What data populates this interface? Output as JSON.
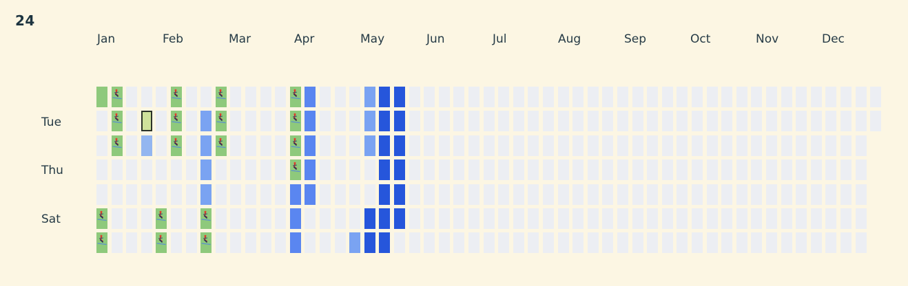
{
  "year_label": "24",
  "months": [
    "Jan",
    "Feb",
    "Mar",
    "Apr",
    "May",
    "Jun",
    "Jul",
    "Aug",
    "Sep",
    "Oct",
    "Nov",
    "Dec"
  ],
  "weekday_labels": [
    {
      "row": 1,
      "label": "Tue"
    },
    {
      "row": 3,
      "label": "Thu"
    },
    {
      "row": 5,
      "label": "Sat"
    }
  ],
  "icons": {
    "activity": "skier-icon"
  },
  "colors": {
    "background": "#fcf6e3",
    "empty": "#eceef3",
    "ski_activity": "#8ec97c",
    "selected_day": "#cfe29b",
    "level_1": "#93b6f0",
    "level_2": "#7aa3f2",
    "level_3": "#5a86f0",
    "level_4": "#2656db"
  },
  "grid": {
    "weeks": 53,
    "days_per_week": 7,
    "first_week_start_row": 0,
    "last_week_end_row": 1,
    "marked_days": [
      {
        "week": 0,
        "day": 0,
        "state": "green"
      },
      {
        "week": 0,
        "day": 5,
        "state": "green",
        "icon": true
      },
      {
        "week": 0,
        "day": 6,
        "state": "green",
        "icon": true
      },
      {
        "week": 1,
        "day": 0,
        "state": "green",
        "icon": true
      },
      {
        "week": 1,
        "day": 1,
        "state": "green",
        "icon": true
      },
      {
        "week": 1,
        "day": 2,
        "state": "green",
        "icon": true
      },
      {
        "week": 3,
        "day": 1,
        "state": "lightgreen",
        "selected": true
      },
      {
        "week": 3,
        "day": 2,
        "state": "blue1"
      },
      {
        "week": 4,
        "day": 5,
        "state": "green",
        "icon": true
      },
      {
        "week": 4,
        "day": 6,
        "state": "green",
        "icon": true
      },
      {
        "week": 5,
        "day": 0,
        "state": "green",
        "icon": true
      },
      {
        "week": 5,
        "day": 1,
        "state": "green",
        "icon": true
      },
      {
        "week": 5,
        "day": 2,
        "state": "green",
        "icon": true
      },
      {
        "week": 7,
        "day": 1,
        "state": "blue2"
      },
      {
        "week": 7,
        "day": 2,
        "state": "blue2"
      },
      {
        "week": 7,
        "day": 3,
        "state": "blue2"
      },
      {
        "week": 7,
        "day": 4,
        "state": "blue2"
      },
      {
        "week": 7,
        "day": 5,
        "state": "green",
        "icon": true
      },
      {
        "week": 7,
        "day": 6,
        "state": "green",
        "icon": true
      },
      {
        "week": 8,
        "day": 0,
        "state": "green",
        "icon": true
      },
      {
        "week": 8,
        "day": 1,
        "state": "green",
        "icon": true
      },
      {
        "week": 8,
        "day": 2,
        "state": "green",
        "icon": true
      },
      {
        "week": 13,
        "day": 0,
        "state": "green",
        "icon": true
      },
      {
        "week": 13,
        "day": 1,
        "state": "green",
        "icon": true
      },
      {
        "week": 13,
        "day": 2,
        "state": "green",
        "icon": true
      },
      {
        "week": 13,
        "day": 3,
        "state": "green",
        "icon": true
      },
      {
        "week": 13,
        "day": 4,
        "state": "blue3"
      },
      {
        "week": 13,
        "day": 5,
        "state": "blue3"
      },
      {
        "week": 13,
        "day": 6,
        "state": "blue3"
      },
      {
        "week": 14,
        "day": 0,
        "state": "blue3"
      },
      {
        "week": 14,
        "day": 1,
        "state": "blue3"
      },
      {
        "week": 14,
        "day": 2,
        "state": "blue3"
      },
      {
        "week": 14,
        "day": 3,
        "state": "blue3"
      },
      {
        "week": 14,
        "day": 4,
        "state": "blue3"
      },
      {
        "week": 17,
        "day": 6,
        "state": "blue2"
      },
      {
        "week": 18,
        "day": 0,
        "state": "blue2"
      },
      {
        "week": 18,
        "day": 1,
        "state": "blue2"
      },
      {
        "week": 18,
        "day": 2,
        "state": "blue2"
      },
      {
        "week": 18,
        "day": 5,
        "state": "blue4"
      },
      {
        "week": 18,
        "day": 6,
        "state": "blue4"
      },
      {
        "week": 19,
        "day": 0,
        "state": "blue4"
      },
      {
        "week": 19,
        "day": 1,
        "state": "blue4"
      },
      {
        "week": 19,
        "day": 2,
        "state": "blue4"
      },
      {
        "week": 19,
        "day": 3,
        "state": "blue4"
      },
      {
        "week": 19,
        "day": 4,
        "state": "blue4"
      },
      {
        "week": 19,
        "day": 5,
        "state": "blue4"
      },
      {
        "week": 19,
        "day": 6,
        "state": "blue4"
      },
      {
        "week": 20,
        "day": 0,
        "state": "blue4"
      },
      {
        "week": 20,
        "day": 1,
        "state": "blue4"
      },
      {
        "week": 20,
        "day": 2,
        "state": "blue4"
      },
      {
        "week": 20,
        "day": 3,
        "state": "blue4"
      },
      {
        "week": 20,
        "day": 4,
        "state": "blue4"
      },
      {
        "week": 20,
        "day": 5,
        "state": "blue4"
      }
    ]
  }
}
